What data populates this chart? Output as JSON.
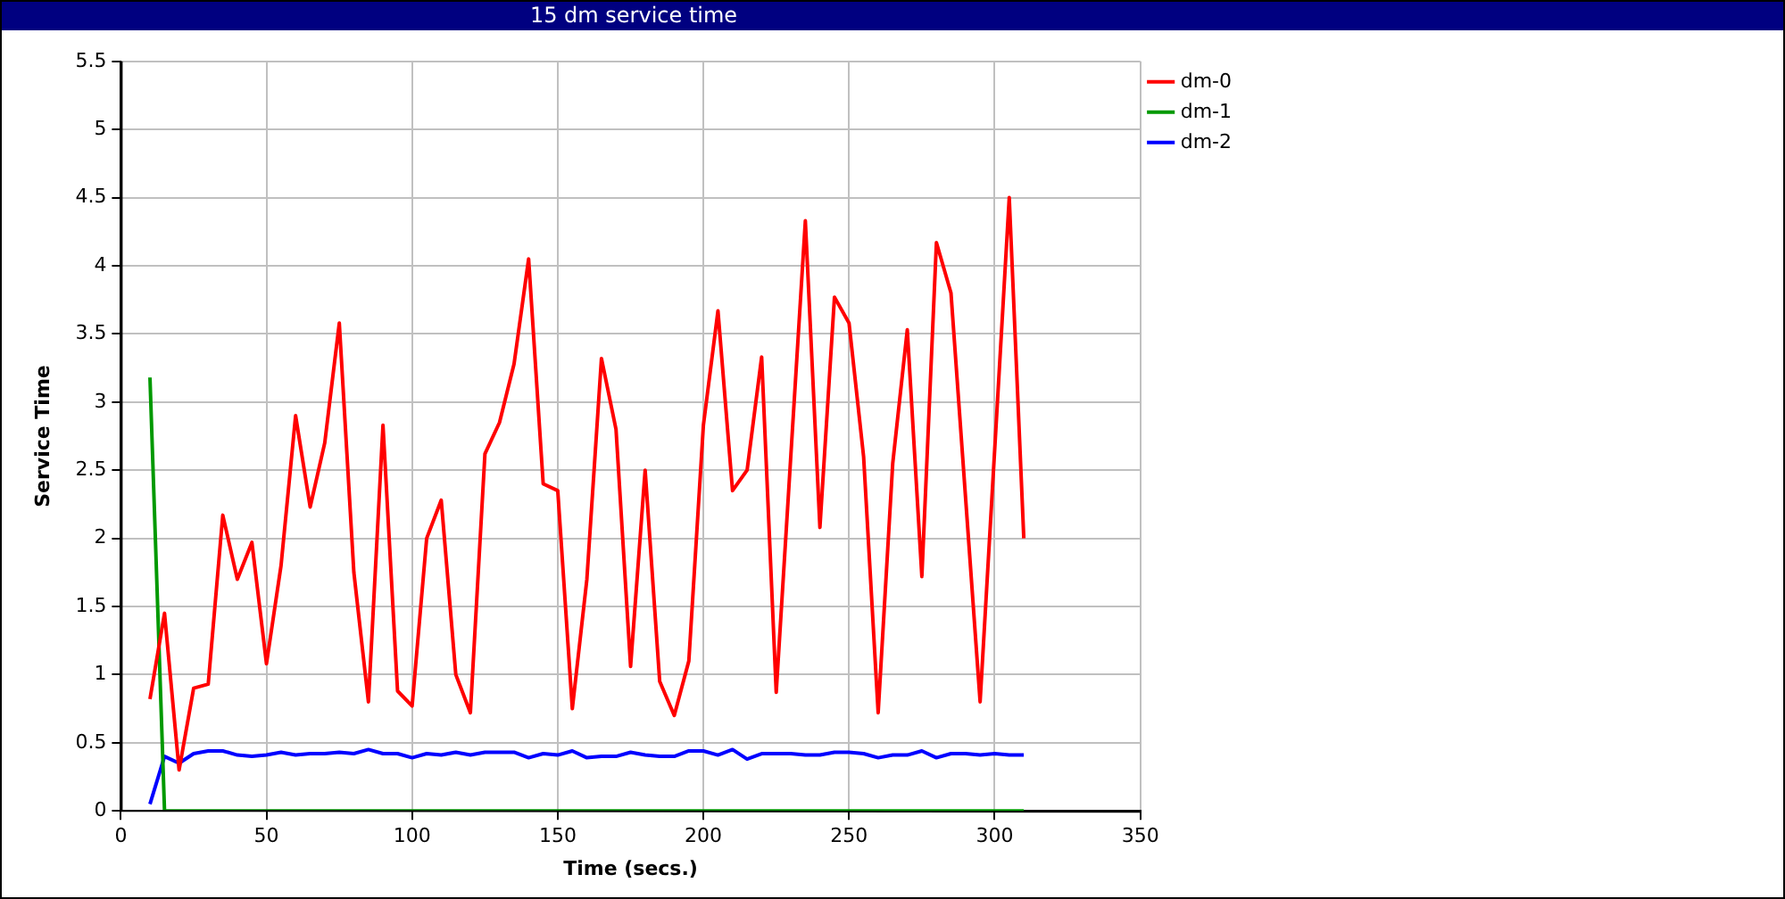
{
  "chart_data": {
    "type": "line",
    "title": "15 dm service time",
    "xlabel": "Time (secs.)",
    "ylabel": "Service Time",
    "x": [
      10,
      15,
      20,
      25,
      30,
      35,
      40,
      45,
      50,
      55,
      60,
      65,
      70,
      75,
      80,
      85,
      90,
      95,
      100,
      105,
      110,
      115,
      120,
      125,
      130,
      135,
      140,
      145,
      150,
      155,
      160,
      165,
      170,
      175,
      180,
      185,
      190,
      195,
      200,
      205,
      210,
      215,
      220,
      225,
      230,
      235,
      240,
      245,
      250,
      255,
      260,
      265,
      270,
      275,
      280,
      285,
      290,
      295,
      300,
      305,
      310
    ],
    "series": [
      {
        "name": "dm-0",
        "color": "#ff0000",
        "values": [
          0.82,
          1.45,
          0.3,
          0.9,
          0.93,
          2.17,
          1.7,
          1.97,
          1.08,
          1.8,
          2.9,
          2.23,
          2.7,
          3.58,
          1.75,
          0.8,
          2.83,
          0.88,
          0.77,
          2.0,
          2.28,
          1.0,
          0.72,
          2.62,
          2.85,
          3.28,
          4.05,
          2.4,
          2.35,
          0.75,
          1.7,
          3.32,
          2.8,
          1.06,
          2.5,
          0.95,
          0.7,
          1.1,
          2.83,
          3.67,
          2.35,
          2.5,
          3.33,
          0.87,
          2.6,
          4.33,
          2.08,
          3.77,
          3.58,
          2.6,
          0.72,
          2.55,
          3.53,
          1.72,
          4.17,
          3.8,
          2.3,
          0.8,
          2.65,
          4.5,
          2.0
        ]
      },
      {
        "name": "dm-1",
        "color": "#009900",
        "values": [
          3.18,
          0,
          0,
          0,
          0,
          0,
          0,
          0,
          0,
          0,
          0,
          0,
          0,
          0,
          0,
          0,
          0,
          0,
          0,
          0,
          0,
          0,
          0,
          0,
          0,
          0,
          0,
          0,
          0,
          0,
          0,
          0,
          0,
          0,
          0,
          0,
          0,
          0,
          0,
          0,
          0,
          0,
          0,
          0,
          0,
          0,
          0,
          0,
          0,
          0,
          0,
          0,
          0,
          0,
          0,
          0,
          0,
          0,
          0,
          0,
          0
        ]
      },
      {
        "name": "dm-2",
        "color": "#0000ff",
        "values": [
          0.05,
          0.4,
          0.35,
          0.42,
          0.44,
          0.44,
          0.41,
          0.4,
          0.41,
          0.43,
          0.41,
          0.42,
          0.42,
          0.43,
          0.42,
          0.45,
          0.42,
          0.42,
          0.39,
          0.42,
          0.41,
          0.43,
          0.41,
          0.43,
          0.43,
          0.43,
          0.39,
          0.42,
          0.41,
          0.44,
          0.39,
          0.4,
          0.4,
          0.43,
          0.41,
          0.4,
          0.4,
          0.44,
          0.44,
          0.41,
          0.45,
          0.38,
          0.42,
          0.42,
          0.42,
          0.41,
          0.41,
          0.43,
          0.43,
          0.42,
          0.39,
          0.41,
          0.41,
          0.44,
          0.39,
          0.42,
          0.42,
          0.41,
          0.42,
          0.41,
          0.41
        ]
      }
    ],
    "xlim": [
      0,
      350
    ],
    "xticks": [
      0,
      50,
      100,
      150,
      200,
      250,
      300,
      350
    ],
    "ylim": [
      0,
      5.5
    ],
    "yticks": [
      0,
      0.5,
      1,
      1.5,
      2,
      2.5,
      3,
      3.5,
      4,
      4.5,
      5,
      5.5
    ],
    "grid": true,
    "legend": "right",
    "marker": "none",
    "line_style": "solid"
  }
}
